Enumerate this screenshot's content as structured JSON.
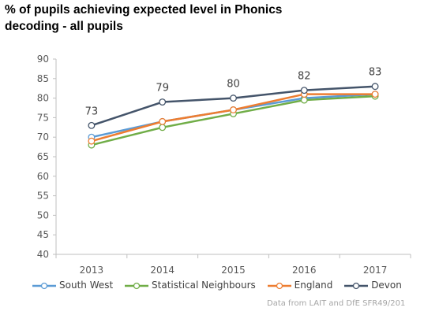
{
  "chart_data": {
    "type": "line",
    "title": "% of pupils achieving expected level in Phonics decoding - all pupils",
    "x": [
      "2013",
      "2014",
      "2015",
      "2016",
      "2017"
    ],
    "yticks": [
      "90",
      "85",
      "80",
      "75",
      "70",
      "65",
      "60",
      "55",
      "50",
      "45",
      "40"
    ],
    "ylim": [
      40,
      90
    ],
    "grid": false,
    "legend_position": "bottom",
    "series": [
      {
        "name": "South West",
        "color": "#5b9bd5",
        "values": [
          70,
          74,
          77,
          80,
          81
        ],
        "labels": []
      },
      {
        "name": "Statistical Neighbours",
        "color": "#70ad47",
        "values": [
          68,
          72.5,
          76,
          79.5,
          80.5
        ],
        "labels": []
      },
      {
        "name": "England",
        "color": "#ed7d31",
        "values": [
          69,
          74,
          77,
          81,
          81
        ],
        "labels": []
      },
      {
        "name": "Devon",
        "color": "#44546a",
        "values": [
          73,
          79,
          80,
          82,
          83
        ],
        "labels": [
          "73",
          "79",
          "80",
          "82",
          "83"
        ]
      }
    ]
  },
  "source_note": "Data from LAIT and DfE SFR49/201"
}
